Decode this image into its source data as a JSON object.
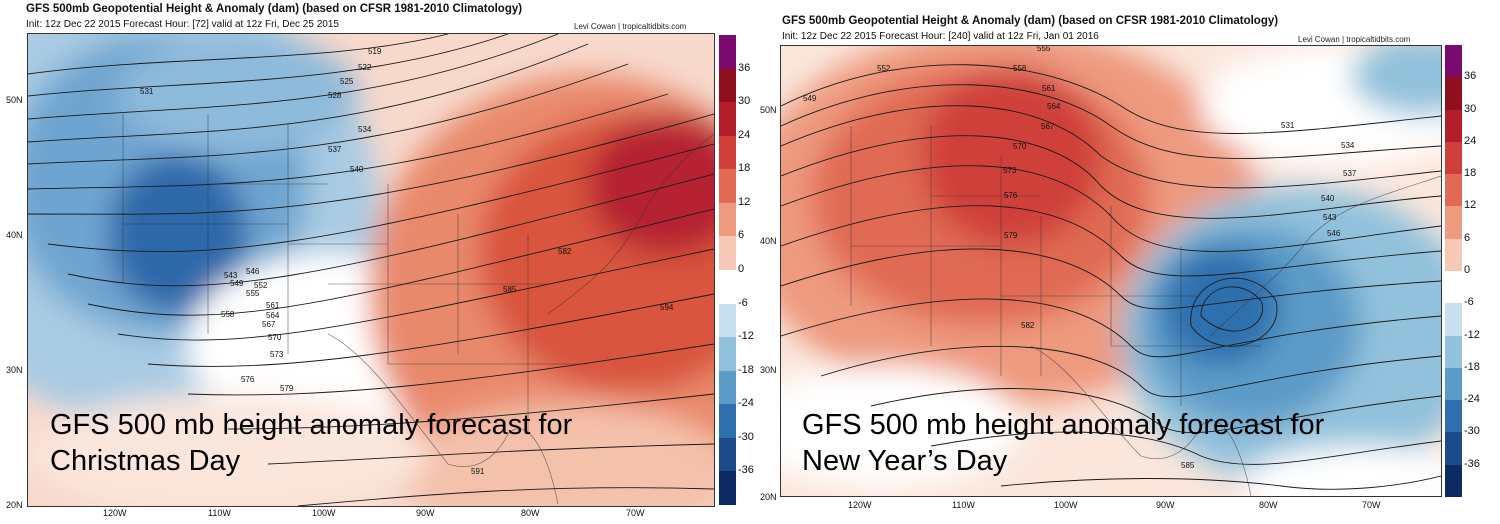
{
  "left": {
    "title": "GFS 500mb Geopotential Height & Anomaly (dam) (based on CFSR 1981-2010 Climatology)",
    "subtitle": "Init: 12z Dec 22 2015   Forecast Hour: [72]   valid at 12z Fri, Dec 25 2015",
    "credit": "Levi Cowan  |  tropicaltidbits.com",
    "caption_line1": "GFS 500 mb height anomaly forecast for",
    "caption_line2": "Christmas Day",
    "lat_labels": [
      "50N",
      "40N",
      "30N",
      "20N"
    ],
    "lon_labels": [
      "120W",
      "110W",
      "100W",
      "90W",
      "80W",
      "70W"
    ],
    "contour_labels": [
      "519",
      "522",
      "525",
      "528",
      "531",
      "534",
      "537",
      "540",
      "543",
      "546",
      "549",
      "552",
      "555",
      "558",
      "561",
      "564",
      "567",
      "570",
      "573",
      "576",
      "579",
      "582",
      "585",
      "591",
      "594"
    ]
  },
  "right": {
    "title": "GFS 500mb Geopotential Height & Anomaly (dam) (based on CFSR 1981-2010 Climatology)",
    "subtitle": "Init: 12z Dec 22 2015   Forecast Hour: [240]   valid at 12z Fri, Jan 01 2016",
    "credit": "Levi Cowan  |  tropicaltidbits.com",
    "caption_line1": "GFS 500 mb height anomaly forecast for",
    "caption_line2": "New Year’s Day",
    "lat_labels": [
      "50N",
      "40N",
      "30N",
      "20N"
    ],
    "lon_labels": [
      "120W",
      "110W",
      "100W",
      "90W",
      "80W",
      "70W"
    ],
    "contour_labels": [
      "531",
      "534",
      "537",
      "540",
      "543",
      "546",
      "549",
      "552",
      "555",
      "558",
      "561",
      "564",
      "567",
      "570",
      "573",
      "576",
      "579",
      "582",
      "585"
    ]
  },
  "colorbar": {
    "labels": [
      "36",
      "30",
      "24",
      "18",
      "12",
      "6",
      "0",
      "-6",
      "-12",
      "-18",
      "-24",
      "-30",
      "-36"
    ],
    "colors": [
      "#7b0a6e",
      "#8e0f1d",
      "#b31e2a",
      "#cf3f3a",
      "#e06a52",
      "#ee9a7f",
      "#f6c8b6",
      "#ffffff",
      "#c7dfee",
      "#92c1dc",
      "#5b9bc8",
      "#2f6fae",
      "#1c4a8a",
      "#0d2b63"
    ]
  }
}
